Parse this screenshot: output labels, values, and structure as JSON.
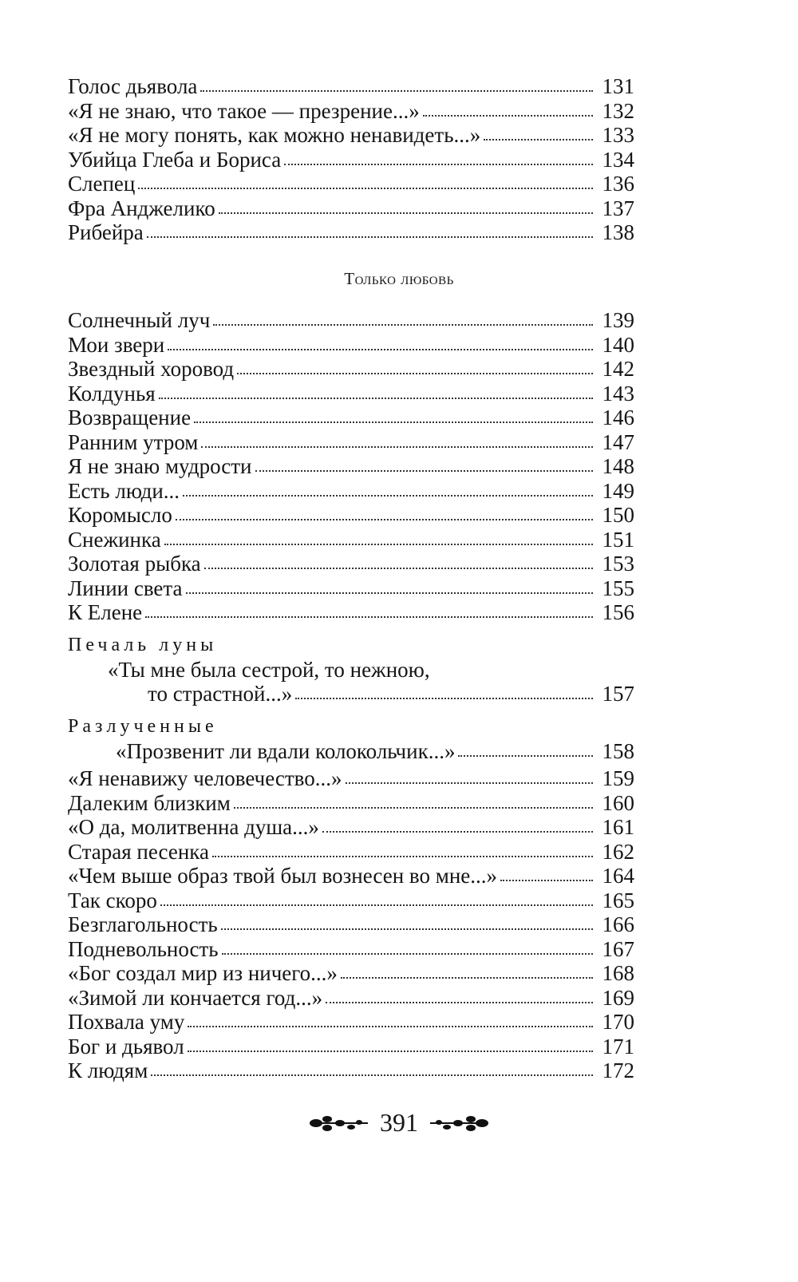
{
  "block1": [
    {
      "title": "Голос дьявола",
      "page": "131"
    },
    {
      "title": "«Я не знаю, что такое — презрение...»",
      "page": "132"
    },
    {
      "title": "«Я не могу понять, как можно ненавидеть...»",
      "page": "133"
    },
    {
      "title": "Убийца Глеба и Бориса",
      "page": "134"
    },
    {
      "title": "Слепец",
      "page": "136"
    },
    {
      "title": "Фра Анджелико",
      "page": "137"
    },
    {
      "title": "Рибейра",
      "page": "138"
    }
  ],
  "section_heading": "Только любовь",
  "block2": [
    {
      "title": "Солнечный луч",
      "page": "139"
    },
    {
      "title": "Мои звери",
      "page": "140"
    },
    {
      "title": "Звездный хоровод",
      "page": "142"
    },
    {
      "title": "Колдунья",
      "page": "143"
    },
    {
      "title": "Возвращение",
      "page": "146"
    },
    {
      "title": "Ранним утром",
      "page": "147"
    },
    {
      "title": "Я не знаю мудрости",
      "page": "148"
    },
    {
      "title": "Есть люди...",
      "page": "149"
    },
    {
      "title": "Коромысло",
      "page": "150"
    },
    {
      "title": "Снежинка",
      "page": "151"
    },
    {
      "title": "Золотая рыбка",
      "page": "153"
    },
    {
      "title": "Линии света",
      "page": "155"
    },
    {
      "title": "К Елене",
      "page": "156"
    }
  ],
  "group1": {
    "heading": "Печаль луны",
    "line1": "«Ты мне была сестрой, то нежною,",
    "line2": "то страстной...»",
    "page": "157"
  },
  "group2": {
    "heading": "Разлученные",
    "line1": "«Прозвенит ли вдали колокольчик...»",
    "page": "158"
  },
  "block3": [
    {
      "title": "«Я ненавижу человечество...»",
      "page": "159"
    },
    {
      "title": "Далеким близким",
      "page": "160"
    },
    {
      "title": "«О да, молитвенна душа...»",
      "page": "161"
    },
    {
      "title": "Старая песенка",
      "page": "162"
    },
    {
      "title": "«Чем выше образ твой был вознесен во мне...»",
      "page": "164"
    },
    {
      "title": "Так скоро",
      "page": "165"
    },
    {
      "title": "Безглагольность",
      "page": "166"
    },
    {
      "title": "Подневольность",
      "page": "167"
    },
    {
      "title": "«Бог создал мир из ничего...»",
      "page": "168"
    },
    {
      "title": "«Зимой ли кончается год...»",
      "page": "169"
    },
    {
      "title": "Похвала уму",
      "page": "170"
    },
    {
      "title": "Бог и дьявол",
      "page": "171"
    },
    {
      "title": "К людям",
      "page": "172"
    }
  ],
  "footer": {
    "page_number": "391",
    "ornament_icon": "floral-ornament"
  }
}
